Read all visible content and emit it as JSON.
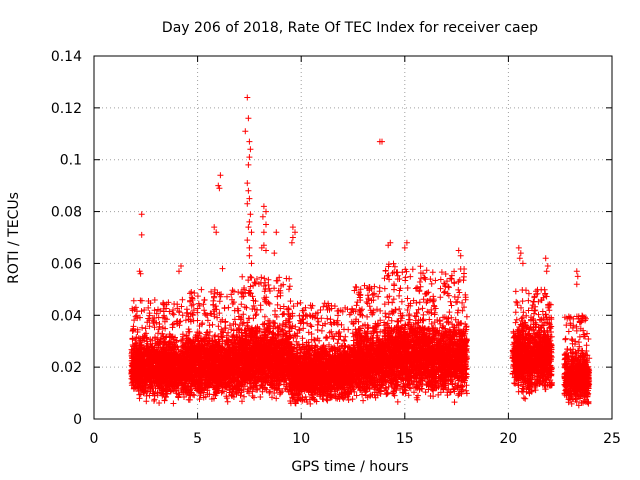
{
  "chart_data": {
    "type": "scatter",
    "title": "Day 206 of 2018, Rate Of TEC Index for receiver caep",
    "xlabel": "GPS time / hours",
    "ylabel": "ROTI / TECUs",
    "xlim": [
      0,
      25
    ],
    "ylim": [
      0,
      0.14
    ],
    "x_ticks": [
      "0",
      "5",
      "10",
      "15",
      "20",
      "25"
    ],
    "y_ticks": [
      "0",
      "0.02",
      "0.04",
      "0.06",
      "0.08",
      "0.1",
      "0.12",
      "0.14"
    ],
    "grid": true,
    "marker": "+",
    "series_color": "#ff0000",
    "outliers": [
      {
        "x": 2.3,
        "y": 0.079
      },
      {
        "x": 2.3,
        "y": 0.071
      },
      {
        "x": 2.2,
        "y": 0.057
      },
      {
        "x": 2.25,
        "y": 0.056
      },
      {
        "x": 4.2,
        "y": 0.059
      },
      {
        "x": 4.1,
        "y": 0.057
      },
      {
        "x": 5.8,
        "y": 0.074
      },
      {
        "x": 5.9,
        "y": 0.072
      },
      {
        "x": 6.1,
        "y": 0.094
      },
      {
        "x": 6.0,
        "y": 0.09
      },
      {
        "x": 6.05,
        "y": 0.089
      },
      {
        "x": 6.2,
        "y": 0.058
      },
      {
        "x": 7.4,
        "y": 0.124
      },
      {
        "x": 7.45,
        "y": 0.116
      },
      {
        "x": 7.3,
        "y": 0.111
      },
      {
        "x": 7.5,
        "y": 0.107
      },
      {
        "x": 7.55,
        "y": 0.104
      },
      {
        "x": 7.5,
        "y": 0.101
      },
      {
        "x": 7.45,
        "y": 0.098
      },
      {
        "x": 7.4,
        "y": 0.091
      },
      {
        "x": 7.45,
        "y": 0.088
      },
      {
        "x": 7.5,
        "y": 0.085
      },
      {
        "x": 7.4,
        "y": 0.083
      },
      {
        "x": 7.55,
        "y": 0.079
      },
      {
        "x": 7.5,
        "y": 0.076
      },
      {
        "x": 7.45,
        "y": 0.074
      },
      {
        "x": 7.6,
        "y": 0.072
      },
      {
        "x": 7.4,
        "y": 0.069
      },
      {
        "x": 7.5,
        "y": 0.066
      },
      {
        "x": 7.5,
        "y": 0.063
      },
      {
        "x": 7.6,
        "y": 0.06
      },
      {
        "x": 8.2,
        "y": 0.082
      },
      {
        "x": 8.3,
        "y": 0.08
      },
      {
        "x": 8.15,
        "y": 0.078
      },
      {
        "x": 8.3,
        "y": 0.075
      },
      {
        "x": 8.2,
        "y": 0.072
      },
      {
        "x": 8.1,
        "y": 0.066
      },
      {
        "x": 8.3,
        "y": 0.065
      },
      {
        "x": 8.2,
        "y": 0.067
      },
      {
        "x": 8.8,
        "y": 0.072
      },
      {
        "x": 8.7,
        "y": 0.064
      },
      {
        "x": 9.6,
        "y": 0.074
      },
      {
        "x": 9.7,
        "y": 0.072
      },
      {
        "x": 9.6,
        "y": 0.07
      },
      {
        "x": 9.55,
        "y": 0.068
      },
      {
        "x": 13.8,
        "y": 0.107
      },
      {
        "x": 13.9,
        "y": 0.107
      },
      {
        "x": 14.3,
        "y": 0.068
      },
      {
        "x": 14.2,
        "y": 0.067
      },
      {
        "x": 15.1,
        "y": 0.068
      },
      {
        "x": 15.0,
        "y": 0.066
      },
      {
        "x": 17.6,
        "y": 0.065
      },
      {
        "x": 17.7,
        "y": 0.063
      },
      {
        "x": 20.5,
        "y": 0.066
      },
      {
        "x": 20.6,
        "y": 0.064
      },
      {
        "x": 20.55,
        "y": 0.062
      },
      {
        "x": 20.7,
        "y": 0.06
      },
      {
        "x": 21.8,
        "y": 0.062
      },
      {
        "x": 21.9,
        "y": 0.059
      },
      {
        "x": 21.85,
        "y": 0.057
      },
      {
        "x": 23.3,
        "y": 0.057
      },
      {
        "x": 23.35,
        "y": 0.055
      },
      {
        "x": 23.3,
        "y": 0.052
      }
    ],
    "density_segments": [
      {
        "x_start": 1.8,
        "x_end": 4.5,
        "base_min": 0.005,
        "base_max": 0.03,
        "upper_max": 0.046
      },
      {
        "x_start": 4.5,
        "x_end": 7.0,
        "base_min": 0.005,
        "base_max": 0.032,
        "upper_max": 0.05
      },
      {
        "x_start": 7.0,
        "x_end": 9.5,
        "base_min": 0.005,
        "base_max": 0.036,
        "upper_max": 0.055
      },
      {
        "x_start": 9.5,
        "x_end": 12.5,
        "base_min": 0.004,
        "base_max": 0.028,
        "upper_max": 0.045
      },
      {
        "x_start": 12.5,
        "x_end": 14.0,
        "base_min": 0.005,
        "base_max": 0.034,
        "upper_max": 0.052
      },
      {
        "x_start": 14.0,
        "x_end": 16.0,
        "base_min": 0.005,
        "base_max": 0.038,
        "upper_max": 0.06
      },
      {
        "x_start": 16.0,
        "x_end": 18.0,
        "base_min": 0.006,
        "base_max": 0.036,
        "upper_max": 0.058
      },
      {
        "x_start": 20.2,
        "x_end": 22.1,
        "base_min": 0.007,
        "base_max": 0.035,
        "upper_max": 0.05
      },
      {
        "x_start": 22.7,
        "x_end": 23.9,
        "base_min": 0.004,
        "base_max": 0.025,
        "upper_max": 0.04
      }
    ]
  }
}
